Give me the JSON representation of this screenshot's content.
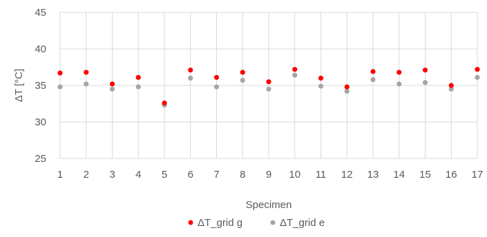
{
  "chart_data": {
    "type": "scatter",
    "title": "",
    "xlabel": "Specimen",
    "ylabel": "ΔT [°C]",
    "x": [
      1,
      2,
      3,
      4,
      5,
      6,
      7,
      8,
      9,
      10,
      11,
      12,
      13,
      14,
      15,
      16,
      17
    ],
    "xlim": [
      1,
      17
    ],
    "ylim": [
      25,
      45
    ],
    "yticks": [
      25,
      30,
      35,
      40,
      45
    ],
    "grid": true,
    "legend_position": "bottom",
    "series": [
      {
        "name": "ΔT_grid g",
        "color": "#ff0000",
        "values": [
          36.7,
          36.8,
          35.2,
          36.1,
          32.6,
          37.1,
          36.1,
          36.8,
          35.5,
          37.2,
          36.0,
          34.8,
          36.9,
          36.8,
          37.1,
          35.0,
          37.2
        ]
      },
      {
        "name": "ΔT_grid e",
        "color": "#a5a5a5",
        "values": [
          34.8,
          35.2,
          34.5,
          34.8,
          32.3,
          36.0,
          34.8,
          35.7,
          34.5,
          36.4,
          34.9,
          34.2,
          35.8,
          35.2,
          35.4,
          34.5,
          36.1
        ]
      }
    ]
  }
}
